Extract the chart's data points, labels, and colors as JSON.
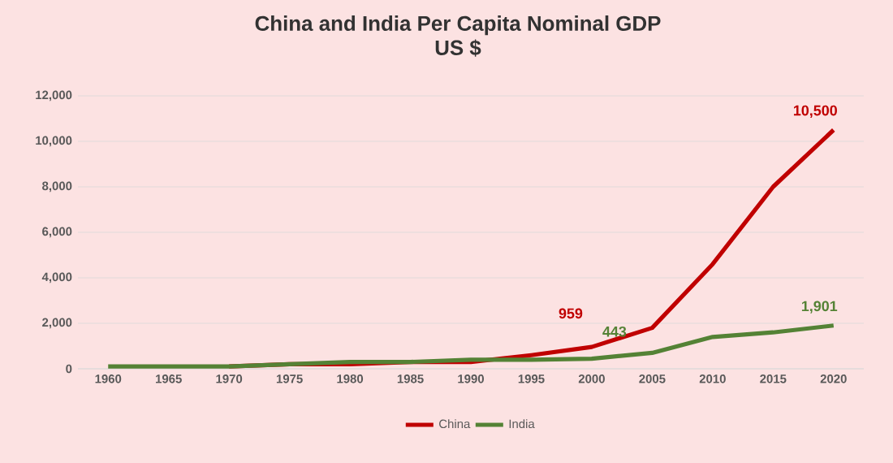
{
  "chart_data": {
    "type": "line",
    "title": "China and India Per Capita Nominal GDP",
    "subtitle": "US $",
    "categories": [
      "1960",
      "1965",
      "1970",
      "1975",
      "1980",
      "1985",
      "1990",
      "1995",
      "2000",
      "2005",
      "2010",
      "2015",
      "2020"
    ],
    "series": [
      {
        "name": "China",
        "color": "#c00000",
        "values": [
          null,
          null,
          100,
          200,
          200,
          300,
          300,
          600,
          959,
          1800,
          4600,
          8000,
          10500
        ],
        "value_labels": [
          null,
          null,
          null,
          null,
          null,
          null,
          null,
          null,
          "959",
          null,
          null,
          null,
          "10,500"
        ]
      },
      {
        "name": "India",
        "color": "#548235",
        "values": [
          100,
          100,
          100,
          200,
          300,
          300,
          400,
          400,
          443,
          700,
          1400,
          1600,
          1901
        ],
        "value_labels": [
          null,
          null,
          null,
          null,
          null,
          null,
          null,
          null,
          "443",
          null,
          null,
          null,
          "1,901"
        ]
      }
    ],
    "ylim": [
      0,
      12000
    ],
    "yticks": [
      {
        "value": 0,
        "label": "0"
      },
      {
        "value": 2000,
        "label": "2,000"
      },
      {
        "value": 4000,
        "label": "4,000"
      },
      {
        "value": 6000,
        "label": "6,000"
      },
      {
        "value": 8000,
        "label": "8,000"
      },
      {
        "value": 10000,
        "label": "10,000"
      },
      {
        "value": 12000,
        "label": "12,000"
      }
    ],
    "grid": "y",
    "legend": "bottom",
    "marker": "none",
    "line_style": "solid"
  }
}
